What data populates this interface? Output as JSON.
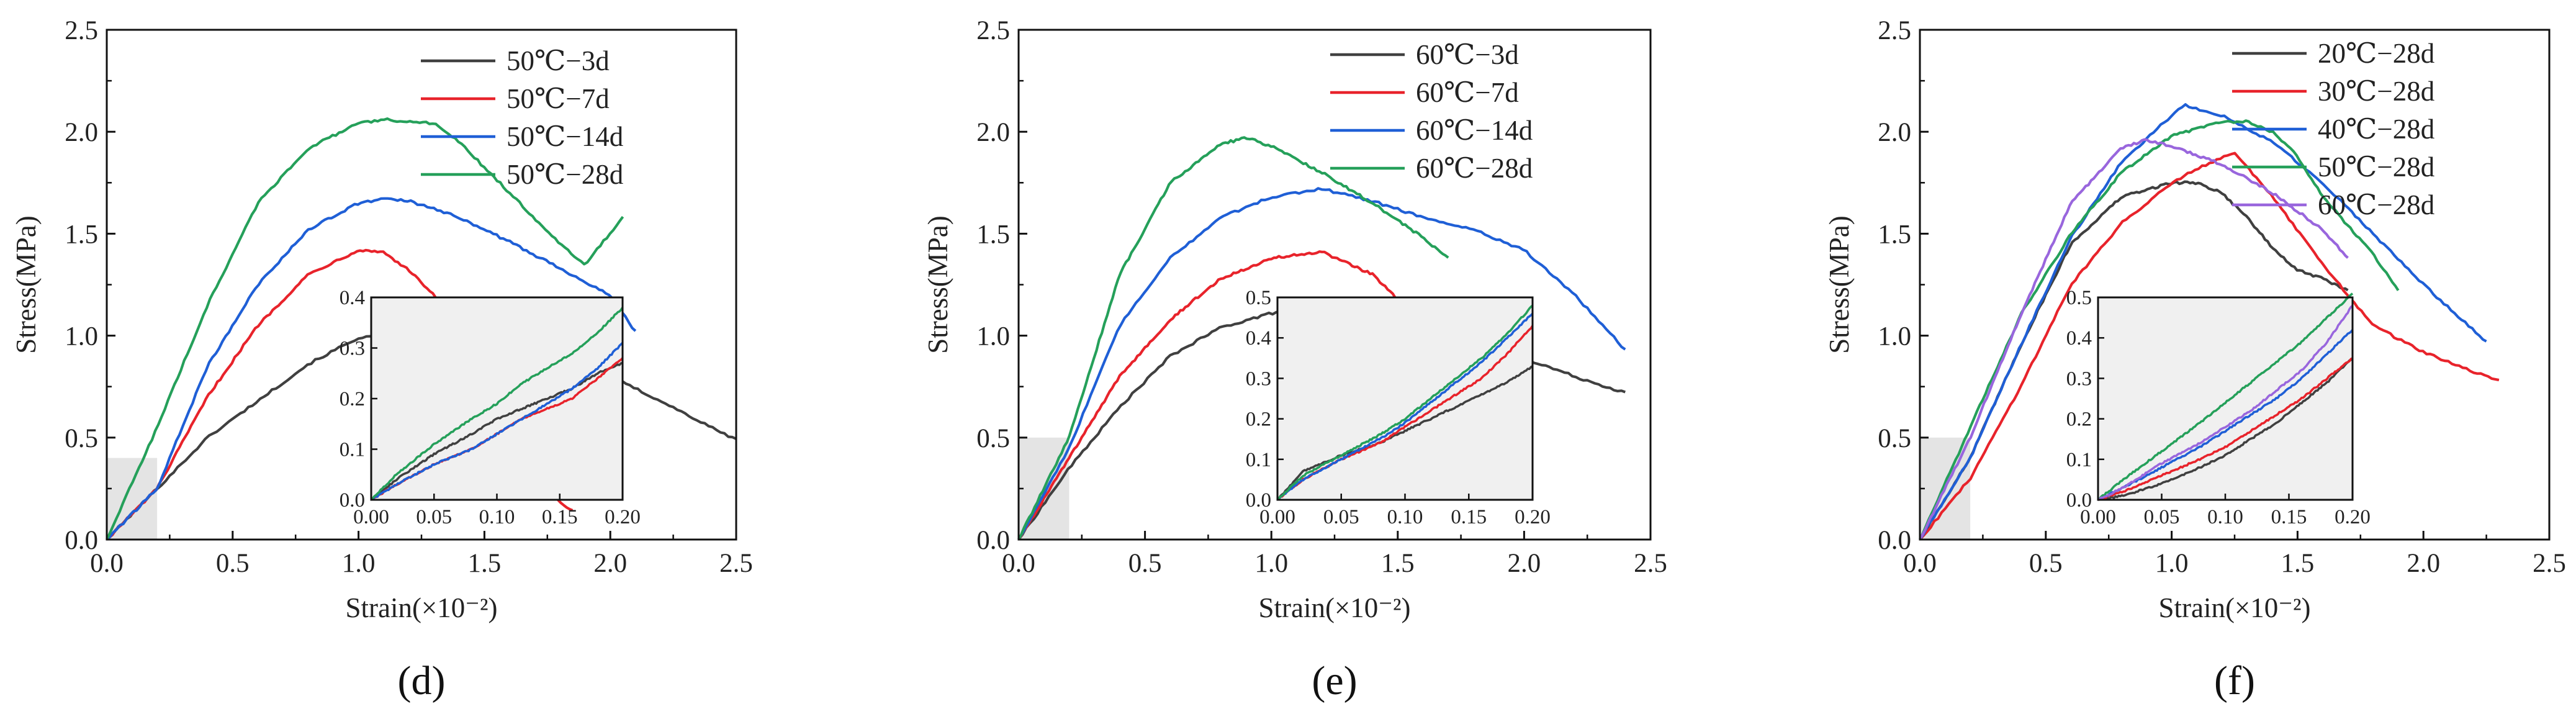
{
  "chart_data": [
    {
      "type": "line",
      "panel_label": "(d)",
      "xlabel": "Strain(×10⁻²)",
      "ylabel": "Stress(MPa)",
      "xlim": [
        0,
        2.5
      ],
      "ylim": [
        0,
        2.5
      ],
      "xticks": [
        "0.0",
        "0.5",
        "1.0",
        "1.5",
        "2.0",
        "2.5"
      ],
      "yticks": [
        "0.0",
        "0.5",
        "1.0",
        "1.5",
        "2.0",
        "2.5"
      ],
      "legend_position": "top-right",
      "highlight_region": {
        "x": [
          0,
          0.2
        ],
        "y": [
          0,
          0.4
        ]
      },
      "series": [
        {
          "name": "50℃−3d",
          "color": "#404040",
          "x": [
            0,
            0.2,
            0.4,
            0.6,
            0.8,
            1.0,
            1.1,
            1.2,
            1.4,
            1.6,
            1.8,
            2.0,
            2.2,
            2.4,
            2.5
          ],
          "y": [
            0,
            0.25,
            0.5,
            0.68,
            0.86,
            0.99,
            1.0,
            0.99,
            0.97,
            0.92,
            0.87,
            0.8,
            0.68,
            0.55,
            0.49
          ]
        },
        {
          "name": "50℃−7d",
          "color": "#e8232b",
          "x": [
            0,
            0.2,
            0.4,
            0.6,
            0.8,
            1.0,
            1.1,
            1.2,
            1.3,
            1.45,
            1.6,
            1.75,
            1.85
          ],
          "y": [
            0,
            0.25,
            0.7,
            1.05,
            1.3,
            1.42,
            1.41,
            1.32,
            1.2,
            0.95,
            0.55,
            0.23,
            0.14
          ]
        },
        {
          "name": "50℃−14d",
          "color": "#1f5fd6",
          "x": [
            0,
            0.2,
            0.4,
            0.6,
            0.8,
            1.0,
            1.1,
            1.2,
            1.4,
            1.6,
            1.8,
            2.0,
            2.1
          ],
          "y": [
            0,
            0.25,
            0.85,
            1.25,
            1.52,
            1.65,
            1.67,
            1.66,
            1.58,
            1.46,
            1.33,
            1.2,
            1.02
          ]
        },
        {
          "name": "50℃−28d",
          "color": "#25a05a",
          "x": [
            0,
            0.2,
            0.4,
            0.6,
            0.8,
            1.0,
            1.1,
            1.3,
            1.4,
            1.6,
            1.8,
            1.9,
            2.05
          ],
          "y": [
            0,
            0.55,
            1.15,
            1.65,
            1.92,
            2.04,
            2.06,
            2.04,
            1.95,
            1.7,
            1.45,
            1.35,
            1.58
          ]
        }
      ],
      "inset": {
        "xlim": [
          0,
          0.2
        ],
        "ylim": [
          0,
          0.4
        ],
        "xticks": [
          "0.00",
          "0.05",
          "0.10",
          "0.15",
          "0.20"
        ],
        "yticks": [
          "0.0",
          "0.1",
          "0.2",
          "0.3",
          "0.4"
        ],
        "series": [
          {
            "name": "50℃−3d",
            "color": "#404040",
            "x": [
              0,
              0.02,
              0.05,
              0.08,
              0.1,
              0.12,
              0.14,
              0.16,
              0.18,
              0.2
            ],
            "y": [
              0,
              0.04,
              0.09,
              0.13,
              0.16,
              0.18,
              0.2,
              0.22,
              0.25,
              0.27
            ]
          },
          {
            "name": "50℃−7d",
            "color": "#e8232b",
            "x": [
              0,
              0.02,
              0.05,
              0.08,
              0.1,
              0.12,
              0.14,
              0.16,
              0.18,
              0.2
            ],
            "y": [
              0,
              0.03,
              0.07,
              0.1,
              0.13,
              0.16,
              0.18,
              0.2,
              0.24,
              0.28
            ]
          },
          {
            "name": "50℃−14d",
            "color": "#1f5fd6",
            "x": [
              0,
              0.02,
              0.05,
              0.08,
              0.1,
              0.12,
              0.14,
              0.16,
              0.18,
              0.2
            ],
            "y": [
              0,
              0.03,
              0.07,
              0.1,
              0.13,
              0.16,
              0.19,
              0.22,
              0.26,
              0.31
            ]
          },
          {
            "name": "50℃−28d",
            "color": "#25a05a",
            "x": [
              0,
              0.02,
              0.05,
              0.08,
              0.1,
              0.12,
              0.14,
              0.16,
              0.18,
              0.2
            ],
            "y": [
              0,
              0.05,
              0.11,
              0.16,
              0.19,
              0.23,
              0.26,
              0.29,
              0.33,
              0.38
            ]
          }
        ]
      }
    },
    {
      "type": "line",
      "panel_label": "(e)",
      "xlabel": "Strain(×10⁻²)",
      "ylabel": "Stress(MPa)",
      "xlim": [
        0,
        2.5
      ],
      "ylim": [
        0,
        2.5
      ],
      "xticks": [
        "0.0",
        "0.5",
        "1.0",
        "1.5",
        "2.0",
        "2.5"
      ],
      "yticks": [
        "0.0",
        "0.5",
        "1.0",
        "1.5",
        "2.0",
        "2.5"
      ],
      "legend_position": "top-right",
      "highlight_region": {
        "x": [
          0,
          0.2
        ],
        "y": [
          0,
          0.5
        ]
      },
      "series": [
        {
          "name": "60℃−3d",
          "color": "#404040",
          "x": [
            0,
            0.2,
            0.4,
            0.6,
            0.8,
            1.0,
            1.2,
            1.4,
            1.6,
            1.8,
            2.0,
            2.2,
            2.4
          ],
          "y": [
            0,
            0.35,
            0.65,
            0.9,
            1.04,
            1.11,
            1.12,
            1.08,
            1.02,
            0.97,
            0.89,
            0.8,
            0.72
          ]
        },
        {
          "name": "60℃−7d",
          "color": "#e8232b",
          "x": [
            0,
            0.2,
            0.4,
            0.6,
            0.8,
            1.0,
            1.2,
            1.4,
            1.5,
            1.6
          ],
          "y": [
            0,
            0.4,
            0.8,
            1.08,
            1.28,
            1.38,
            1.41,
            1.3,
            1.18,
            1.12
          ]
        },
        {
          "name": "60℃−14d",
          "color": "#1f5fd6",
          "x": [
            0,
            0.2,
            0.4,
            0.6,
            0.8,
            1.0,
            1.2,
            1.4,
            1.6,
            1.8,
            2.0,
            2.2,
            2.4
          ],
          "y": [
            0,
            0.45,
            1.05,
            1.38,
            1.58,
            1.68,
            1.72,
            1.66,
            1.58,
            1.52,
            1.42,
            1.2,
            0.93
          ]
        },
        {
          "name": "60℃−28d",
          "color": "#25a05a",
          "x": [
            0,
            0.2,
            0.4,
            0.6,
            0.8,
            0.9,
            1.0,
            1.2,
            1.4,
            1.6,
            1.7
          ],
          "y": [
            0,
            0.5,
            1.3,
            1.75,
            1.94,
            1.97,
            1.93,
            1.8,
            1.65,
            1.48,
            1.38
          ]
        }
      ],
      "inset": {
        "xlim": [
          0,
          0.2
        ],
        "ylim": [
          0,
          0.5
        ],
        "xticks": [
          "0.00",
          "0.05",
          "0.10",
          "0.15",
          "0.20"
        ],
        "yticks": [
          "0.0",
          "0.1",
          "0.2",
          "0.3",
          "0.4",
          "0.5"
        ],
        "series": [
          {
            "name": "60℃−3d",
            "color": "#404040",
            "x": [
              0,
              0.02,
              0.05,
              0.08,
              0.1,
              0.12,
              0.14,
              0.16,
              0.18,
              0.2
            ],
            "y": [
              0,
              0.07,
              0.11,
              0.14,
              0.17,
              0.2,
              0.23,
              0.26,
              0.29,
              0.33
            ]
          },
          {
            "name": "60℃−7d",
            "color": "#e8232b",
            "x": [
              0,
              0.02,
              0.05,
              0.08,
              0.1,
              0.12,
              0.14,
              0.16,
              0.18,
              0.2
            ],
            "y": [
              0,
              0.05,
              0.1,
              0.14,
              0.18,
              0.22,
              0.26,
              0.3,
              0.36,
              0.43
            ]
          },
          {
            "name": "60℃−14d",
            "color": "#1f5fd6",
            "x": [
              0,
              0.02,
              0.05,
              0.08,
              0.1,
              0.12,
              0.14,
              0.16,
              0.18,
              0.2
            ],
            "y": [
              0,
              0.05,
              0.1,
              0.15,
              0.19,
              0.24,
              0.29,
              0.34,
              0.4,
              0.46
            ]
          },
          {
            "name": "60℃−28d",
            "color": "#25a05a",
            "x": [
              0,
              0.02,
              0.05,
              0.08,
              0.1,
              0.12,
              0.14,
              0.16,
              0.18,
              0.2
            ],
            "y": [
              0,
              0.06,
              0.11,
              0.16,
              0.2,
              0.25,
              0.3,
              0.35,
              0.41,
              0.48
            ]
          }
        ]
      }
    },
    {
      "type": "line",
      "panel_label": "(f)",
      "xlabel": "Strain(×10⁻²)",
      "ylabel": "Stress(MPa)",
      "xlim": [
        0,
        2.5
      ],
      "ylim": [
        0,
        2.5
      ],
      "xticks": [
        "0.0",
        "0.5",
        "1.0",
        "1.5",
        "2.0",
        "2.5"
      ],
      "yticks": [
        "0.0",
        "0.5",
        "1.0",
        "1.5",
        "2.0",
        "2.5"
      ],
      "legend_position": "top-right",
      "highlight_region": {
        "x": [
          0,
          0.2
        ],
        "y": [
          0,
          0.5
        ]
      },
      "series": [
        {
          "name": "20℃−28d",
          "color": "#404040",
          "x": [
            0,
            0.2,
            0.4,
            0.6,
            0.8,
            1.0,
            1.1,
            1.2,
            1.3,
            1.4,
            1.5,
            1.6,
            1.7
          ],
          "y": [
            0,
            0.4,
            0.95,
            1.45,
            1.68,
            1.75,
            1.75,
            1.7,
            1.58,
            1.43,
            1.32,
            1.28,
            1.22
          ]
        },
        {
          "name": "30℃−28d",
          "color": "#e8232b",
          "x": [
            0,
            0.2,
            0.4,
            0.6,
            0.8,
            1.0,
            1.1,
            1.25,
            1.4,
            1.6,
            1.8,
            2.0,
            2.2,
            2.3
          ],
          "y": [
            0,
            0.3,
            0.75,
            1.25,
            1.55,
            1.75,
            1.82,
            1.9,
            1.68,
            1.35,
            1.05,
            0.92,
            0.82,
            0.78
          ]
        },
        {
          "name": "40℃−28d",
          "color": "#1f5fd6",
          "x": [
            0,
            0.2,
            0.4,
            0.6,
            0.8,
            1.0,
            1.05,
            1.2,
            1.4,
            1.6,
            1.8,
            2.0,
            2.25
          ],
          "y": [
            0,
            0.4,
            0.95,
            1.48,
            1.85,
            2.08,
            2.13,
            2.08,
            1.95,
            1.75,
            1.5,
            1.25,
            0.97
          ]
        },
        {
          "name": "50℃−28d",
          "color": "#25a05a",
          "x": [
            0,
            0.2,
            0.4,
            0.6,
            0.8,
            1.0,
            1.2,
            1.3,
            1.4,
            1.5,
            1.6,
            1.8,
            1.9
          ],
          "y": [
            0,
            0.55,
            1.1,
            1.5,
            1.8,
            1.98,
            2.05,
            2.05,
            2.0,
            1.88,
            1.68,
            1.4,
            1.22
          ]
        },
        {
          "name": "60℃−28d",
          "color": "#9966dd",
          "x": [
            0,
            0.2,
            0.4,
            0.6,
            0.8,
            0.9,
            1.0,
            1.2,
            1.4,
            1.6,
            1.7
          ],
          "y": [
            0,
            0.5,
            1.1,
            1.65,
            1.92,
            1.96,
            1.93,
            1.84,
            1.7,
            1.52,
            1.38
          ]
        }
      ],
      "inset": {
        "xlim": [
          0,
          0.2
        ],
        "ylim": [
          0,
          0.5
        ],
        "xticks": [
          "0.00",
          "0.05",
          "0.10",
          "0.15",
          "0.20"
        ],
        "yticks": [
          "0.0",
          "0.1",
          "0.2",
          "0.3",
          "0.4",
          "0.5"
        ],
        "series": [
          {
            "name": "20℃−28d",
            "color": "#404040",
            "x": [
              0,
              0.02,
              0.05,
              0.08,
              0.1,
              0.12,
              0.14,
              0.16,
              0.18,
              0.2
            ],
            "y": [
              0,
              0.01,
              0.04,
              0.08,
              0.11,
              0.15,
              0.19,
              0.24,
              0.29,
              0.35
            ]
          },
          {
            "name": "30℃−28d",
            "color": "#e8232b",
            "x": [
              0,
              0.02,
              0.05,
              0.08,
              0.1,
              0.12,
              0.14,
              0.16,
              0.18,
              0.2
            ],
            "y": [
              0,
              0.02,
              0.06,
              0.1,
              0.13,
              0.17,
              0.21,
              0.25,
              0.3,
              0.35
            ]
          },
          {
            "name": "40℃−28d",
            "color": "#1f5fd6",
            "x": [
              0,
              0.02,
              0.05,
              0.08,
              0.1,
              0.12,
              0.14,
              0.16,
              0.18,
              0.2
            ],
            "y": [
              0,
              0.03,
              0.08,
              0.13,
              0.17,
              0.21,
              0.25,
              0.3,
              0.36,
              0.42
            ]
          },
          {
            "name": "50℃−28d",
            "color": "#25a05a",
            "x": [
              0,
              0.02,
              0.05,
              0.08,
              0.1,
              0.12,
              0.14,
              0.16,
              0.18,
              0.2
            ],
            "y": [
              0,
              0.05,
              0.12,
              0.19,
              0.24,
              0.29,
              0.34,
              0.39,
              0.45,
              0.51
            ]
          },
          {
            "name": "60℃−28d",
            "color": "#9966dd",
            "x": [
              0,
              0.02,
              0.05,
              0.08,
              0.1,
              0.12,
              0.14,
              0.16,
              0.18,
              0.2
            ],
            "y": [
              0,
              0.03,
              0.09,
              0.14,
              0.18,
              0.22,
              0.27,
              0.32,
              0.39,
              0.48
            ]
          }
        ]
      }
    }
  ]
}
